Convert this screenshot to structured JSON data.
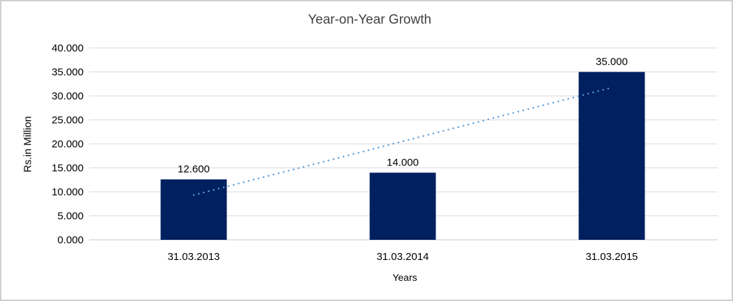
{
  "chart_data": {
    "type": "bar",
    "title": "Year-on-Year Growth",
    "xlabel": "Years",
    "ylabel": "Rs.in Million",
    "categories": [
      "31.03.2013",
      "31.03.2014",
      "31.03.2015"
    ],
    "values": [
      12.6,
      14.0,
      35.0
    ],
    "data_labels": [
      "12.600",
      "14.000",
      "35.000"
    ],
    "ylim": [
      0,
      40
    ],
    "ytick_step": 5,
    "ytick_labels": [
      "0.000",
      "5.000",
      "10.000",
      "15.000",
      "20.000",
      "25.000",
      "30.000",
      "35.000",
      "40.000"
    ],
    "grid": true,
    "legend": false,
    "bar_color": "#002060",
    "gridline_color": "#D9D9D9",
    "axisline_color": "#C9C9C9",
    "trendline": {
      "type": "linear",
      "style": "dotted",
      "color": "#5B9BD5",
      "start_value": 9.33,
      "end_value": 31.73
    }
  }
}
